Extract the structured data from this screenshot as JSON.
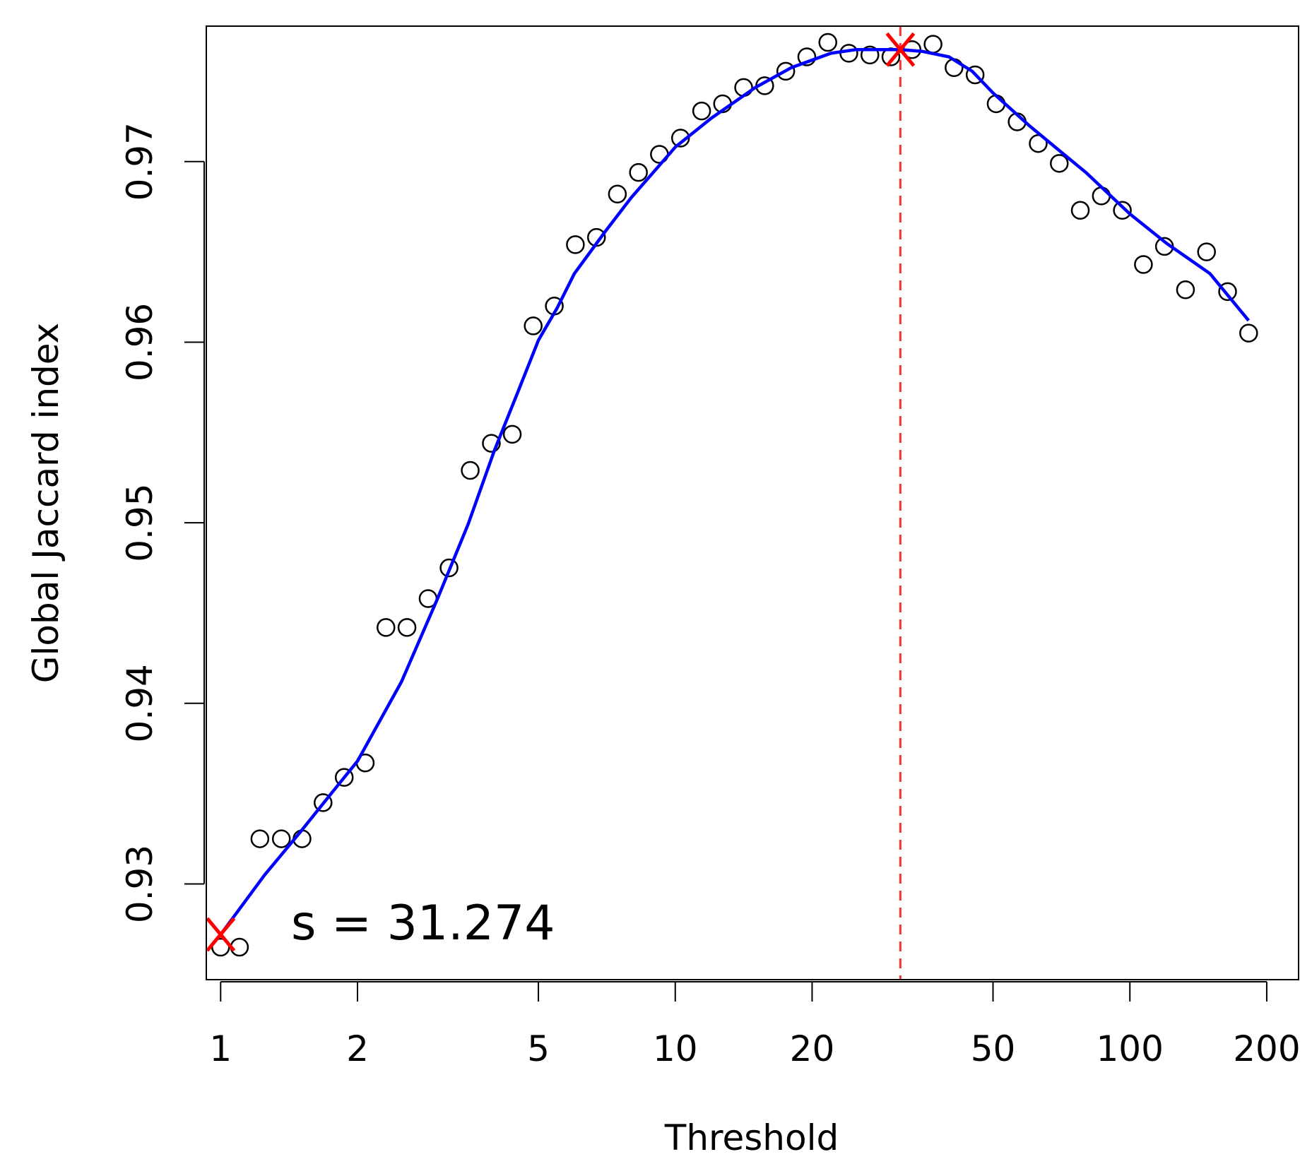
{
  "chart_data": {
    "type": "scatter",
    "title": "",
    "xlabel": "Threshold",
    "ylabel": "Global Jaccard index",
    "x_scale": "log",
    "xlim": [
      0.93,
      235
    ],
    "ylim": [
      0.9247,
      0.9775
    ],
    "x_ticks": [
      {
        "value": 1,
        "label": "1"
      },
      {
        "value": 2,
        "label": "2"
      },
      {
        "value": 5,
        "label": "5"
      },
      {
        "value": 10,
        "label": "10"
      },
      {
        "value": 20,
        "label": "20"
      },
      {
        "value": 50,
        "label": "50"
      },
      {
        "value": 100,
        "label": "100"
      },
      {
        "value": 200,
        "label": "200"
      }
    ],
    "y_ticks": [
      {
        "value": 0.93,
        "label": "0.93"
      },
      {
        "value": 0.94,
        "label": "0.94"
      },
      {
        "value": 0.95,
        "label": "0.95"
      },
      {
        "value": 0.96,
        "label": "0.96"
      },
      {
        "value": 0.97,
        "label": "0.97"
      }
    ],
    "grid": false,
    "legend": "none",
    "colors": {
      "points": "#000000",
      "curve": "#0000ff",
      "marker": "#ff0000",
      "vline": "#ff3333"
    },
    "points": [
      [
        1.0,
        0.9265
      ],
      [
        1.1,
        0.9265
      ],
      [
        1.22,
        0.9325
      ],
      [
        1.36,
        0.9325
      ],
      [
        1.51,
        0.9325
      ],
      [
        1.68,
        0.9345
      ],
      [
        1.87,
        0.9359
      ],
      [
        2.08,
        0.9367
      ],
      [
        2.31,
        0.9442
      ],
      [
        2.57,
        0.9442
      ],
      [
        2.86,
        0.9458
      ],
      [
        3.18,
        0.9475
      ],
      [
        3.54,
        0.9529
      ],
      [
        3.94,
        0.9544
      ],
      [
        4.38,
        0.9549
      ],
      [
        4.87,
        0.9609
      ],
      [
        5.42,
        0.962
      ],
      [
        6.03,
        0.9654
      ],
      [
        6.71,
        0.9658
      ],
      [
        7.46,
        0.9682
      ],
      [
        8.3,
        0.9694
      ],
      [
        9.23,
        0.9704
      ],
      [
        10.27,
        0.9713
      ],
      [
        11.43,
        0.9728
      ],
      [
        12.71,
        0.9732
      ],
      [
        14.14,
        0.9741
      ],
      [
        15.73,
        0.9742
      ],
      [
        17.5,
        0.975
      ],
      [
        19.47,
        0.9758
      ],
      [
        21.66,
        0.9766
      ],
      [
        24.09,
        0.976
      ],
      [
        26.8,
        0.9759
      ],
      [
        29.81,
        0.9758
      ],
      [
        33.17,
        0.9762
      ],
      [
        36.9,
        0.9765
      ],
      [
        41.04,
        0.9752
      ],
      [
        45.66,
        0.9748
      ],
      [
        50.8,
        0.9732
      ],
      [
        56.5,
        0.9722
      ],
      [
        62.86,
        0.971
      ],
      [
        69.93,
        0.9699
      ],
      [
        77.79,
        0.9673
      ],
      [
        86.54,
        0.9681
      ],
      [
        96.27,
        0.9673
      ],
      [
        107.1,
        0.9643
      ],
      [
        119.14,
        0.9653
      ],
      [
        132.54,
        0.9629
      ],
      [
        147.45,
        0.965
      ],
      [
        164.03,
        0.9628
      ],
      [
        182.48,
        0.9605
      ]
    ],
    "fit_curve": {
      "x": [
        1.0,
        1.25,
        1.5,
        1.75,
        2.0,
        2.5,
        3.0,
        3.5,
        4.0,
        4.5,
        5.0,
        5.5,
        6.0,
        7.0,
        8.0,
        10.0,
        12.0,
        15.0,
        18.0,
        22.0,
        25.0,
        28.0,
        31.27,
        35.0,
        40.0,
        45.0,
        50.0,
        60.0,
        70.0,
        80.0,
        100.0,
        120.0,
        150.0,
        182.48
      ],
      "y": [
        0.9272,
        0.9305,
        0.9329,
        0.935,
        0.9368,
        0.9412,
        0.9458,
        0.9499,
        0.954,
        0.9572,
        0.9601,
        0.9619,
        0.9638,
        0.9661,
        0.968,
        0.9708,
        0.9724,
        0.9741,
        0.9752,
        0.976,
        0.9762,
        0.9762,
        0.9762,
        0.9761,
        0.9758,
        0.975,
        0.9738,
        0.972,
        0.9706,
        0.9694,
        0.9671,
        0.9655,
        0.9638,
        0.9612
      ]
    },
    "markers": [
      {
        "x": 1.0,
        "y": 0.9272,
        "symbol": "x"
      },
      {
        "x": 31.274,
        "y": 0.9762,
        "symbol": "x"
      }
    ],
    "vline_x": 31.274,
    "annotation": "s = 31.274"
  }
}
